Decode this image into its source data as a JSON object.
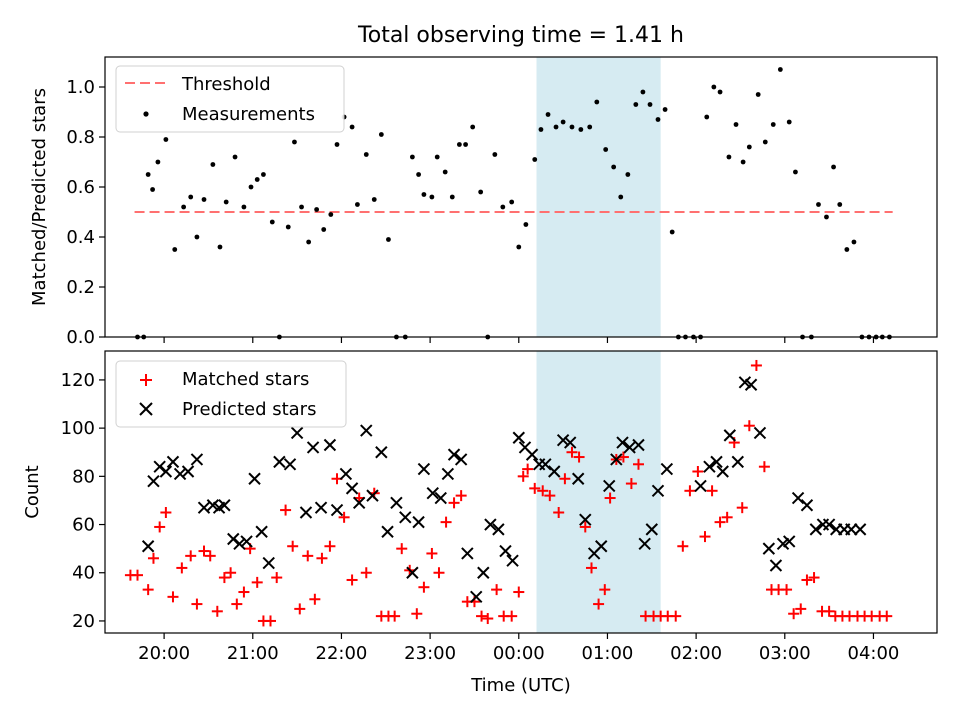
{
  "title": "Total observing time = 1.41 h",
  "colors": {
    "measurement": "#000000",
    "threshold": "#ff7070",
    "matched": "#ff0000",
    "predicted": "#000000",
    "highlight": "#add8e6"
  },
  "x_axis": {
    "label": "Time (UTC)",
    "ticks": [
      {
        "h": 20,
        "label": "20:00"
      },
      {
        "h": 21,
        "label": "21:00"
      },
      {
        "h": 22,
        "label": "22:00"
      },
      {
        "h": 23,
        "label": "23:00"
      },
      {
        "h": 24,
        "label": "00:00"
      },
      {
        "h": 25,
        "label": "01:00"
      },
      {
        "h": 26,
        "label": "02:00"
      },
      {
        "h": 27,
        "label": "03:00"
      },
      {
        "h": 28,
        "label": "04:00"
      }
    ]
  },
  "chart_data": [
    {
      "type": "scatter",
      "ylabel": "Matched/Predicted stars",
      "xlim": [
        "19:20",
        "04:43"
      ],
      "ylim": [
        0,
        1.12
      ],
      "yticks": [
        "0.0",
        "0.2",
        "0.4",
        "0.6",
        "0.8",
        "1.0"
      ],
      "legend": {
        "placement": "upper-left",
        "entries": [
          "Threshold",
          "Measurements"
        ]
      },
      "highlight": {
        "from": "00:12",
        "to": "01:36"
      },
      "threshold": {
        "name": "Threshold",
        "value": 0.5,
        "x_from": "19:40",
        "x_to": "04:13"
      },
      "x": [
        19.7,
        19.77,
        19.82,
        19.87,
        19.93,
        20.02,
        20.12,
        20.22,
        20.3,
        20.37,
        20.45,
        20.55,
        20.63,
        20.7,
        20.8,
        20.9,
        20.98,
        21.05,
        21.12,
        21.22,
        21.3,
        21.4,
        21.47,
        21.55,
        21.63,
        21.72,
        21.8,
        21.88,
        21.95,
        22.03,
        22.12,
        22.18,
        22.28,
        22.37,
        22.45,
        22.53,
        22.62,
        22.72,
        22.8,
        22.87,
        22.93,
        23.02,
        23.08,
        23.17,
        23.25,
        23.33,
        23.4,
        23.48,
        23.57,
        23.65,
        23.73,
        23.82,
        23.92,
        24.0,
        24.08,
        24.18,
        24.25,
        24.33,
        24.42,
        24.5,
        24.6,
        24.7,
        24.8,
        24.88,
        24.98,
        25.07,
        25.15,
        25.23,
        25.32,
        25.4,
        25.48,
        25.57,
        25.65,
        25.73,
        25.8,
        25.88,
        25.97,
        26.05,
        26.12,
        26.2,
        26.27,
        26.37,
        26.45,
        26.53,
        26.6,
        26.7,
        26.78,
        26.87,
        26.95,
        27.05,
        27.12,
        27.2,
        27.3,
        27.38,
        27.47,
        27.55,
        27.62,
        27.7,
        27.78,
        27.87,
        27.95,
        28.03,
        28.1,
        28.18
      ],
      "y": [
        0.0,
        0.0,
        0.65,
        0.59,
        0.7,
        0.79,
        0.35,
        0.52,
        0.56,
        0.4,
        0.55,
        0.69,
        0.36,
        0.54,
        0.72,
        0.52,
        0.6,
        0.63,
        0.65,
        0.46,
        0.0,
        0.44,
        0.78,
        0.52,
        0.38,
        0.51,
        0.43,
        0.49,
        0.77,
        0.88,
        0.84,
        0.53,
        0.73,
        0.55,
        0.81,
        0.39,
        0.0,
        0.0,
        0.72,
        0.65,
        0.57,
        0.56,
        0.72,
        0.66,
        0.56,
        0.77,
        0.77,
        0.84,
        0.58,
        0.0,
        0.73,
        0.52,
        0.54,
        0.36,
        0.45,
        0.71,
        0.83,
        0.89,
        0.84,
        0.86,
        0.84,
        0.83,
        0.84,
        0.94,
        0.75,
        0.68,
        0.56,
        0.65,
        0.93,
        0.98,
        0.93,
        0.87,
        0.91,
        0.42,
        0.0,
        0.0,
        0.0,
        0.0,
        0.88,
        1.0,
        0.98,
        0.72,
        0.85,
        0.7,
        0.76,
        0.97,
        0.78,
        0.85,
        1.07,
        0.86,
        0.66,
        0.0,
        0.0,
        0.53,
        0.48,
        0.68,
        0.53,
        0.35,
        0.38,
        0.0,
        0.0,
        0.0,
        0.0,
        0.0
      ]
    },
    {
      "type": "scatter",
      "ylabel": "Count",
      "xlim": [
        "19:20",
        "04:43"
      ],
      "ylim": [
        15,
        132
      ],
      "yticks": [
        "20",
        "40",
        "60",
        "80",
        "100",
        "120"
      ],
      "legend": {
        "placement": "upper-left",
        "entries": [
          "Matched stars",
          "Predicted stars"
        ]
      },
      "highlight": {
        "from": "00:12",
        "to": "01:36"
      },
      "series": [
        {
          "name": "Matched stars",
          "marker": "+",
          "x": [
            19.62,
            19.7,
            19.82,
            19.88,
            19.95,
            20.02,
            20.1,
            20.2,
            20.3,
            20.37,
            20.45,
            20.52,
            20.6,
            20.68,
            20.75,
            20.82,
            20.9,
            20.97,
            21.05,
            21.12,
            21.2,
            21.27,
            21.37,
            21.45,
            21.53,
            21.62,
            21.7,
            21.78,
            21.87,
            21.95,
            22.03,
            22.12,
            22.2,
            22.28,
            22.37,
            22.45,
            22.53,
            22.6,
            22.68,
            22.77,
            22.85,
            22.93,
            23.02,
            23.1,
            23.18,
            23.27,
            23.35,
            23.42,
            23.5,
            23.58,
            23.65,
            23.75,
            23.83,
            23.92,
            24.0,
            24.05,
            24.1,
            24.18,
            24.27,
            24.35,
            24.45,
            24.52,
            24.6,
            24.68,
            24.75,
            24.82,
            24.9,
            24.97,
            25.03,
            25.1,
            25.18,
            25.27,
            25.35,
            25.43,
            25.52,
            25.6,
            25.68,
            25.77,
            25.85,
            25.93,
            26.02,
            26.1,
            26.18,
            26.27,
            26.35,
            26.43,
            26.52,
            26.6,
            26.68,
            26.77,
            26.85,
            26.93,
            27.02,
            27.1,
            27.18,
            27.25,
            27.33,
            27.42,
            27.5,
            27.57,
            27.65,
            27.73,
            27.82,
            27.9,
            27.98,
            28.07,
            28.15
          ],
          "y": [
            39,
            39,
            33,
            46,
            59,
            65,
            30,
            42,
            47,
            27,
            49,
            47,
            24,
            38,
            40,
            27,
            32,
            50,
            36,
            20,
            20,
            38,
            66,
            51,
            25,
            47,
            29,
            46,
            51,
            79,
            63,
            37,
            71,
            40,
            73,
            22,
            22,
            22,
            50,
            41,
            23,
            34,
            48,
            40,
            61,
            69,
            72,
            28,
            28,
            22,
            21,
            33,
            22,
            22,
            32,
            80,
            83,
            75,
            74,
            72,
            65,
            79,
            90,
            88,
            59,
            42,
            27,
            33,
            71,
            87,
            88,
            77,
            85,
            22,
            22,
            22,
            22,
            22,
            51,
            74,
            82,
            55,
            74,
            61,
            63,
            94,
            67,
            101,
            126,
            84,
            33,
            33,
            33,
            23,
            25,
            37,
            38,
            24,
            24,
            22,
            22,
            22,
            22,
            22,
            22,
            22,
            22
          ]
        },
        {
          "name": "Predicted stars",
          "marker": "x",
          "x": [
            19.82,
            19.88,
            19.95,
            20.02,
            20.1,
            20.18,
            20.27,
            20.37,
            20.45,
            20.55,
            20.62,
            20.68,
            20.78,
            20.85,
            20.93,
            21.02,
            21.1,
            21.18,
            21.3,
            21.42,
            21.5,
            21.6,
            21.68,
            21.77,
            21.87,
            21.95,
            22.05,
            22.12,
            22.2,
            22.28,
            22.35,
            22.45,
            22.52,
            22.62,
            22.72,
            22.8,
            22.87,
            22.93,
            23.03,
            23.12,
            23.2,
            23.27,
            23.35,
            23.42,
            23.52,
            23.6,
            23.68,
            23.77,
            23.85,
            23.93,
            24.0,
            24.07,
            24.15,
            24.23,
            24.3,
            24.4,
            24.5,
            24.58,
            24.67,
            24.75,
            24.85,
            24.93,
            25.02,
            25.1,
            25.17,
            25.25,
            25.35,
            25.42,
            25.5,
            25.57,
            25.67,
            26.05,
            26.15,
            26.23,
            26.3,
            26.38,
            26.47,
            26.55,
            26.62,
            26.72,
            26.82,
            26.9,
            26.98,
            27.05,
            27.15,
            27.25,
            27.35,
            27.43,
            27.5,
            27.58,
            27.67,
            27.75,
            27.85
          ],
          "y": [
            51,
            78,
            84,
            82,
            86,
            81,
            82,
            87,
            67,
            68,
            67,
            68,
            54,
            52,
            53,
            79,
            57,
            44,
            86,
            85,
            98,
            65,
            92,
            67,
            93,
            66,
            81,
            75,
            69,
            99,
            72,
            90,
            57,
            69,
            63,
            40,
            61,
            83,
            73,
            71,
            81,
            89,
            87,
            48,
            30,
            40,
            60,
            58,
            49,
            45,
            96,
            92,
            89,
            85,
            85,
            82,
            95,
            94,
            79,
            62,
            48,
            51,
            76,
            87,
            94,
            92,
            93,
            52,
            58,
            74,
            83,
            76,
            84,
            86,
            82,
            97,
            86,
            119,
            118,
            98,
            50,
            43,
            52,
            53,
            71,
            68,
            58,
            60,
            60,
            58,
            58,
            58,
            58
          ]
        }
      ]
    }
  ]
}
